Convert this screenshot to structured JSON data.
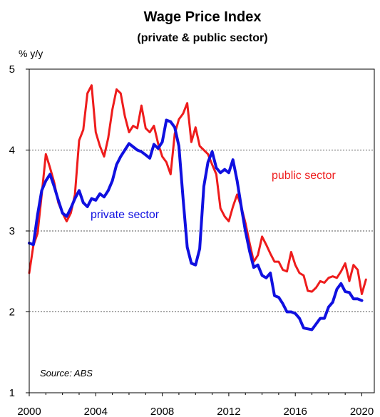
{
  "chart_data": {
    "type": "line",
    "title": "Wage Price Index",
    "subtitle": "(private & public sector)",
    "ylabel": "% y/y",
    "source": "Source: ABS",
    "xlim": [
      2000,
      2020.75
    ],
    "ylim": [
      1,
      5
    ],
    "x_ticks": [
      "2000",
      "2004",
      "2008",
      "2012",
      "2016",
      "2020"
    ],
    "y_ticks": [
      "1",
      "2",
      "3",
      "4",
      "5"
    ],
    "grid": "horizontal dotted at 2, 3, 4",
    "colors": {
      "private": "#1010e0",
      "public": "#ee1c1c"
    },
    "series": [
      {
        "name": "private sector",
        "color": "#1010e0",
        "x": [
          2000.0,
          2000.25,
          2000.5,
          2000.75,
          2001.0,
          2001.25,
          2001.5,
          2001.75,
          2002.0,
          2002.25,
          2002.5,
          2002.75,
          2003.0,
          2003.25,
          2003.5,
          2003.75,
          2004.0,
          2004.25,
          2004.5,
          2004.75,
          2005.0,
          2005.25,
          2005.5,
          2005.75,
          2006.0,
          2006.25,
          2006.5,
          2006.75,
          2007.0,
          2007.25,
          2007.5,
          2007.75,
          2008.0,
          2008.25,
          2008.5,
          2008.75,
          2009.0,
          2009.25,
          2009.5,
          2009.75,
          2010.0,
          2010.25,
          2010.5,
          2010.75,
          2011.0,
          2011.25,
          2011.5,
          2011.75,
          2012.0,
          2012.25,
          2012.5,
          2012.75,
          2013.0,
          2013.25,
          2013.5,
          2013.75,
          2014.0,
          2014.25,
          2014.5,
          2014.75,
          2015.0,
          2015.25,
          2015.5,
          2015.75,
          2016.0,
          2016.25,
          2016.5,
          2016.75,
          2017.0,
          2017.25,
          2017.5,
          2017.75,
          2018.0,
          2018.25,
          2018.5,
          2018.75,
          2019.0,
          2019.25,
          2019.5,
          2019.75,
          2020.0,
          2020.25
        ],
        "values": [
          2.85,
          2.83,
          3.2,
          3.5,
          3.62,
          3.7,
          3.55,
          3.38,
          3.22,
          3.18,
          3.28,
          3.4,
          3.5,
          3.35,
          3.3,
          3.4,
          3.38,
          3.46,
          3.42,
          3.5,
          3.62,
          3.82,
          3.92,
          4.0,
          4.08,
          4.04,
          4.0,
          3.98,
          3.94,
          3.9,
          4.07,
          4.02,
          4.1,
          4.37,
          4.35,
          4.28,
          4.05,
          3.4,
          2.8,
          2.6,
          2.58,
          2.78,
          3.55,
          3.85,
          3.98,
          3.78,
          3.72,
          3.76,
          3.72,
          3.88,
          3.62,
          3.3,
          3.0,
          2.75,
          2.55,
          2.58,
          2.45,
          2.42,
          2.48,
          2.2,
          2.18,
          2.1,
          2.0,
          2.0,
          1.98,
          1.92,
          1.8,
          1.79,
          1.78,
          1.85,
          1.92,
          1.92,
          2.06,
          2.12,
          2.28,
          2.35,
          2.25,
          2.24,
          2.16,
          2.16,
          2.14,
          null
        ]
      },
      {
        "name": "public sector",
        "color": "#ee1c1c",
        "x": [
          2000.0,
          2000.25,
          2000.5,
          2000.75,
          2001.0,
          2001.25,
          2001.5,
          2001.75,
          2002.0,
          2002.25,
          2002.5,
          2002.75,
          2003.0,
          2003.25,
          2003.5,
          2003.75,
          2004.0,
          2004.25,
          2004.5,
          2004.75,
          2005.0,
          2005.25,
          2005.5,
          2005.75,
          2006.0,
          2006.25,
          2006.5,
          2006.75,
          2007.0,
          2007.25,
          2007.5,
          2007.75,
          2008.0,
          2008.25,
          2008.5,
          2008.75,
          2009.0,
          2009.25,
          2009.5,
          2009.75,
          2010.0,
          2010.25,
          2010.5,
          2010.75,
          2011.0,
          2011.25,
          2011.5,
          2011.75,
          2012.0,
          2012.25,
          2012.5,
          2012.75,
          2013.0,
          2013.25,
          2013.5,
          2013.75,
          2014.0,
          2014.25,
          2014.5,
          2014.75,
          2015.0,
          2015.25,
          2015.5,
          2015.75,
          2016.0,
          2016.25,
          2016.5,
          2016.75,
          2017.0,
          2017.25,
          2017.5,
          2017.75,
          2018.0,
          2018.25,
          2018.5,
          2018.75,
          2019.0,
          2019.25,
          2019.5,
          2019.75,
          2020.0,
          2020.25
        ],
        "values": [
          2.48,
          2.82,
          2.97,
          3.45,
          3.95,
          3.78,
          3.6,
          3.35,
          3.22,
          3.12,
          3.22,
          3.45,
          4.12,
          4.25,
          4.7,
          4.8,
          4.22,
          4.05,
          3.92,
          4.15,
          4.5,
          4.75,
          4.7,
          4.42,
          4.22,
          4.3,
          4.27,
          4.55,
          4.27,
          4.22,
          4.3,
          4.08,
          3.92,
          3.85,
          3.7,
          4.2,
          4.38,
          4.45,
          4.58,
          4.1,
          4.28,
          4.05,
          4.0,
          3.95,
          3.82,
          3.7,
          3.28,
          3.18,
          3.12,
          3.3,
          3.45,
          3.3,
          3.1,
          2.85,
          2.62,
          2.7,
          2.93,
          2.83,
          2.72,
          2.62,
          2.62,
          2.52,
          2.5,
          2.74,
          2.58,
          2.48,
          2.45,
          2.26,
          2.25,
          2.3,
          2.38,
          2.36,
          2.42,
          2.44,
          2.42,
          2.5,
          2.6,
          2.38,
          2.58,
          2.52,
          2.22,
          2.4
        ]
      }
    ]
  }
}
